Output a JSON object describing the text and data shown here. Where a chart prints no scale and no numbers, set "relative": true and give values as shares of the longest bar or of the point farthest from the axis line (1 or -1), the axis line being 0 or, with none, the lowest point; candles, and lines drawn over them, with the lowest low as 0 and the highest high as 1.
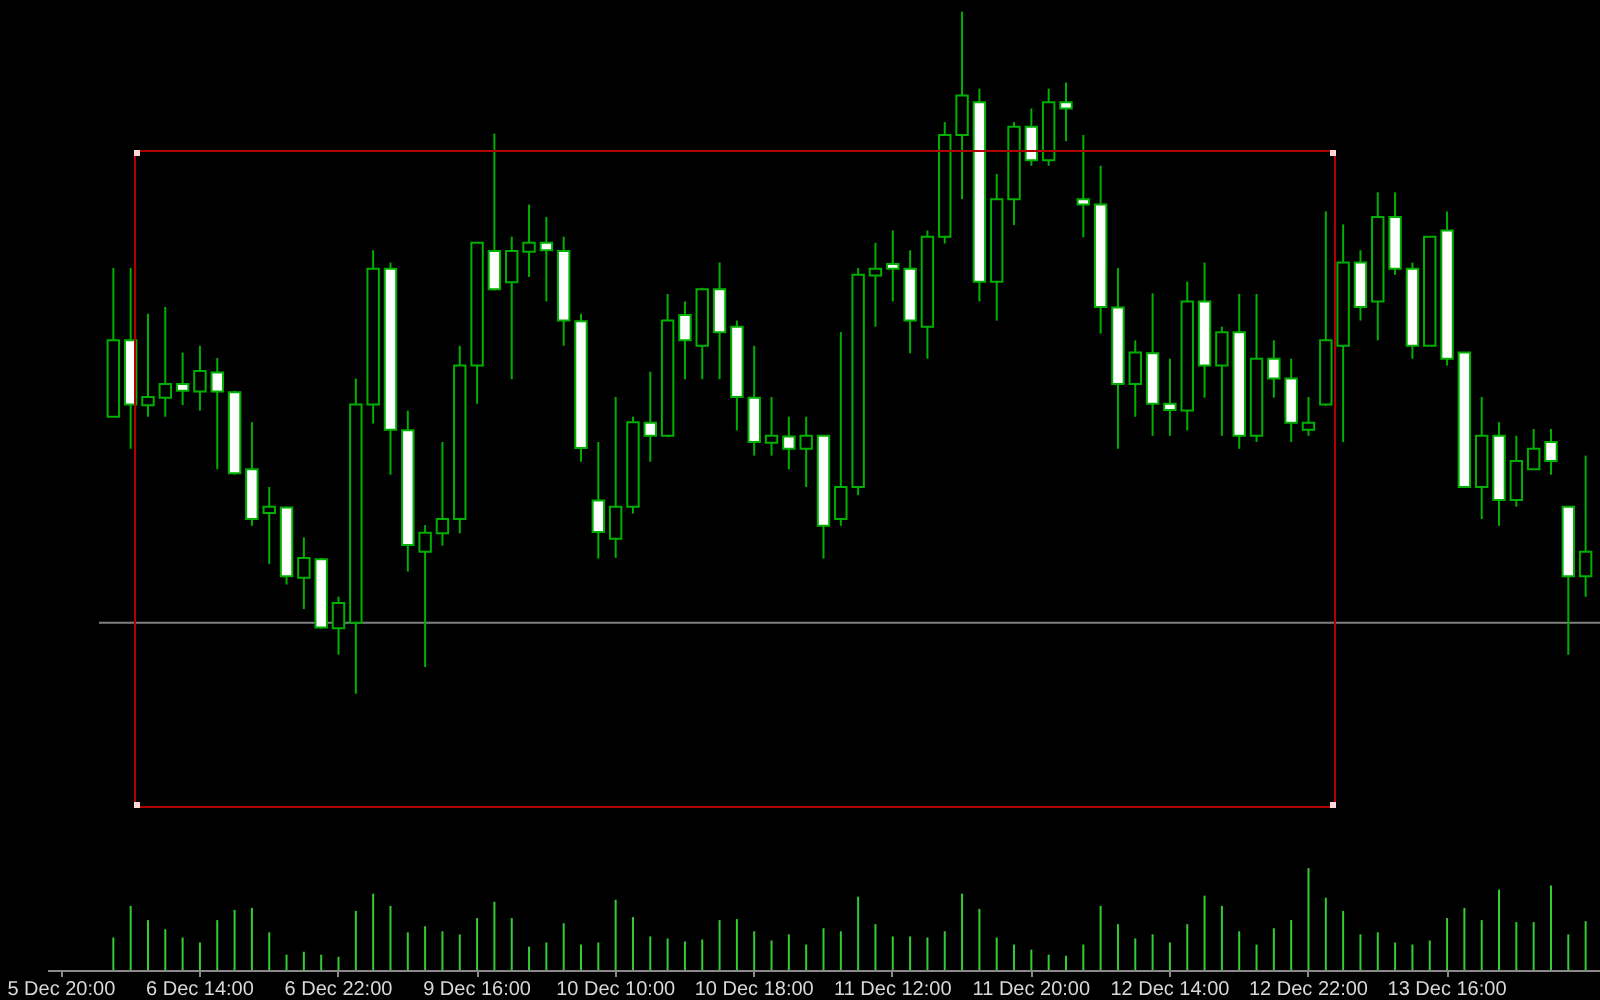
{
  "chart_data": [
    {
      "type": "candlestick",
      "relative": true,
      "color": "#00b000",
      "categories": [
        null,
        null,
        null,
        null,
        null,
        null,
        null,
        null,
        null,
        null,
        null,
        null,
        null,
        null,
        null,
        null,
        null,
        null,
        null,
        null,
        null,
        null,
        null,
        null,
        null,
        null,
        null,
        null,
        null,
        null,
        null,
        null,
        null,
        null,
        null,
        null,
        null,
        null,
        null,
        null,
        null,
        null,
        null,
        null,
        null,
        null,
        null,
        null,
        null,
        null,
        null,
        null,
        null,
        null,
        null,
        null,
        null,
        null,
        null,
        null,
        null,
        null,
        null,
        null,
        null,
        null,
        null,
        null,
        null,
        null,
        null,
        null,
        null,
        null,
        null,
        null,
        null,
        null,
        null,
        null,
        null,
        null,
        null,
        null,
        null,
        null
      ],
      "ohlc": [
        [
          0.406,
          0.624,
          0.406,
          0.518
        ],
        [
          0.518,
          0.624,
          0.359,
          0.424
        ],
        [
          0.423,
          0.557,
          0.406,
          0.435
        ],
        [
          0.434,
          0.567,
          0.406,
          0.454
        ],
        [
          0.454,
          0.5,
          0.423,
          0.444
        ],
        [
          0.443,
          0.51,
          0.415,
          0.473
        ],
        [
          0.471,
          0.492,
          0.329,
          0.443
        ],
        [
          0.442,
          0.444,
          0.321,
          0.323
        ],
        [
          0.329,
          0.398,
          0.246,
          0.256
        ],
        [
          0.265,
          0.303,
          0.19,
          0.274
        ],
        [
          0.273,
          0.274,
          0.16,
          0.172
        ],
        [
          0.17,
          0.229,
          0.124,
          0.199
        ],
        [
          0.197,
          0.199,
          0.095,
          0.097
        ],
        [
          0.096,
          0.142,
          0.057,
          0.133
        ],
        [
          0.104,
          0.462,
          0,
          0.424
        ],
        [
          0.424,
          0.65,
          0.396,
          0.623
        ],
        [
          0.623,
          0.632,
          0.321,
          0.387
        ],
        [
          0.386,
          0.415,
          0.179,
          0.218
        ],
        [
          0.208,
          0.247,
          0.039,
          0.236
        ],
        [
          0.235,
          0.369,
          0.217,
          0.256
        ],
        [
          0.256,
          0.51,
          0.235,
          0.481
        ],
        [
          0.481,
          0.661,
          0.425,
          0.661
        ],
        [
          0.649,
          0.821,
          0.591,
          0.593
        ],
        [
          0.603,
          0.67,
          0.461,
          0.649
        ],
        [
          0.648,
          0.717,
          0.611,
          0.661
        ],
        [
          0.661,
          0.699,
          0.575,
          0.65
        ],
        [
          0.649,
          0.67,
          0.51,
          0.547
        ],
        [
          0.546,
          0.557,
          0.34,
          0.36
        ],
        [
          0.283,
          0.369,
          0.198,
          0.237
        ],
        [
          0.227,
          0.435,
          0.199,
          0.274
        ],
        [
          0.274,
          0.406,
          0.264,
          0.398
        ],
        [
          0.397,
          0.472,
          0.34,
          0.378
        ],
        [
          0.378,
          0.586,
          0.376,
          0.547
        ],
        [
          0.555,
          0.575,
          0.461,
          0.518
        ],
        [
          0.51,
          0.595,
          0.461,
          0.593
        ],
        [
          0.593,
          0.632,
          0.461,
          0.53
        ],
        [
          0.538,
          0.547,
          0.386,
          0.435
        ],
        [
          0.434,
          0.51,
          0.349,
          0.369
        ],
        [
          0.368,
          0.435,
          0.349,
          0.378
        ],
        [
          0.377,
          0.406,
          0.329,
          0.359
        ],
        [
          0.359,
          0.406,
          0.303,
          0.378
        ],
        [
          0.378,
          0.378,
          0.198,
          0.246
        ],
        [
          0.256,
          0.53,
          0.246,
          0.303
        ],
        [
          0.303,
          0.624,
          0.291,
          0.614
        ],
        [
          0.613,
          0.661,
          0.538,
          0.623
        ],
        [
          0.63,
          0.679,
          0.575,
          0.623
        ],
        [
          0.623,
          0.65,
          0.499,
          0.547
        ],
        [
          0.538,
          0.679,
          0.491,
          0.67
        ],
        [
          0.67,
          0.838,
          0.66,
          0.819
        ],
        [
          0.819,
          1,
          0.725,
          0.877
        ],
        [
          0.867,
          0.887,
          0.575,
          0.604
        ],
        [
          0.604,
          0.762,
          0.547,
          0.725
        ],
        [
          0.725,
          0.838,
          0.687,
          0.831
        ],
        [
          0.831,
          0.858,
          0.774,
          0.782
        ],
        [
          0.782,
          0.887,
          0.774,
          0.867
        ],
        [
          0.867,
          0.896,
          0.81,
          0.858
        ],
        [
          0.725,
          0.819,
          0.669,
          0.717
        ],
        [
          0.717,
          0.774,
          0.528,
          0.567
        ],
        [
          0.566,
          0.624,
          0.359,
          0.454
        ],
        [
          0.454,
          0.518,
          0.406,
          0.5
        ],
        [
          0.499,
          0.587,
          0.378,
          0.425
        ],
        [
          0.425,
          0.491,
          0.378,
          0.416
        ],
        [
          0.415,
          0.604,
          0.386,
          0.575
        ],
        [
          0.575,
          0.632,
          0.434,
          0.481
        ],
        [
          0.481,
          0.538,
          0.378,
          0.53
        ],
        [
          0.53,
          0.586,
          0.359,
          0.378
        ],
        [
          0.378,
          0.586,
          0.369,
          0.491
        ],
        [
          0.491,
          0.518,
          0.434,
          0.462
        ],
        [
          0.462,
          0.491,
          0.369,
          0.397
        ],
        [
          0.387,
          0.435,
          0.378,
          0.397
        ],
        [
          0.424,
          0.707,
          0.422,
          0.518
        ],
        [
          0.51,
          0.688,
          0.369,
          0.632
        ],
        [
          0.632,
          0.65,
          0.547,
          0.567
        ],
        [
          0.575,
          0.735,
          0.518,
          0.699
        ],
        [
          0.699,
          0.735,
          0.614,
          0.623
        ],
        [
          0.623,
          0.632,
          0.491,
          0.51
        ],
        [
          0.51,
          0.67,
          0.51,
          0.67
        ],
        [
          0.679,
          0.707,
          0.481,
          0.491
        ],
        [
          0.5,
          0.5,
          0.303,
          0.303
        ],
        [
          0.303,
          0.435,
          0.256,
          0.378
        ],
        [
          0.378,
          0.398,
          0.246,
          0.284
        ],
        [
          0.284,
          0.378,
          0.274,
          0.341
        ],
        [
          0.329,
          0.388,
          0.329,
          0.359
        ],
        [
          0.369,
          0.388,
          0.321,
          0.341
        ],
        [
          0.274,
          0.274,
          0.057,
          0.172
        ],
        [
          0.172,
          0.349,
          0.142,
          0.208
        ]
      ],
      "colors": [
        "#000000",
        "#ffffff",
        "#000000",
        "#000000",
        "#ffffff",
        "#000000",
        "#ffffff",
        "#ffffff",
        "#ffffff",
        "#000000",
        "#ffffff",
        "#000000",
        "#ffffff",
        "#000000",
        "#000000",
        "#000000",
        "#ffffff",
        "#ffffff",
        "#000000",
        "#000000",
        "#000000",
        "#000000",
        "#ffffff",
        "#000000",
        "#000000",
        "#ffffff",
        "#ffffff",
        "#ffffff",
        "#ffffff",
        "#000000",
        "#000000",
        "#ffffff",
        "#000000",
        "#ffffff",
        "#000000",
        "#ffffff",
        "#ffffff",
        "#ffffff",
        "#000000",
        "#ffffff",
        "#000000",
        "#ffffff",
        "#000000",
        "#000000",
        "#000000",
        "#ffffff",
        "#ffffff",
        "#000000",
        "#000000",
        "#000000",
        "#ffffff",
        "#000000",
        "#000000",
        "#ffffff",
        "#000000",
        "#ffffff",
        "#ffffff",
        "#ffffff",
        "#ffffff",
        "#000000",
        "#ffffff",
        "#ffffff",
        "#000000",
        "#ffffff",
        "#000000",
        "#ffffff",
        "#000000",
        "#ffffff",
        "#ffffff",
        "#000000",
        "#000000",
        "#000000",
        "#ffffff",
        "#000000",
        "#ffffff",
        "#ffffff",
        "#000000",
        "#ffffff",
        "#ffffff",
        "#000000",
        "#ffffff",
        "#000000",
        "#000000",
        "#ffffff",
        "#ffffff",
        "#000000"
      ],
      "ref_lines": [
        {
          "axis": "y",
          "value": 0.104,
          "color": "#808080"
        }
      ]
    },
    {
      "type": "bar",
      "relative": true,
      "color": "#32cd32",
      "categories": [
        "5 Dec 20:00",
        null,
        null,
        null,
        null,
        null,
        null,
        null,
        "6 Dec 14:00",
        null,
        null,
        null,
        null,
        null,
        null,
        null,
        "6 Dec 22:00",
        null,
        null,
        null,
        null,
        null,
        null,
        null,
        "9 Dec 16:00",
        null,
        null,
        null,
        null,
        null,
        null,
        null,
        "10 Dec 10:00",
        null,
        null,
        null,
        null,
        null,
        null,
        null,
        "10 Dec 18:00",
        null,
        null,
        null,
        null,
        null,
        null,
        null,
        "11 Dec 12:00",
        null,
        null,
        null,
        null,
        null,
        null,
        null,
        "11 Dec 20:00",
        null,
        null,
        null,
        null,
        null,
        null,
        null,
        "12 Dec 14:00",
        null,
        null,
        null,
        null,
        null,
        null,
        null,
        "12 Dec 22:00",
        null,
        null,
        null,
        null,
        null,
        null,
        null,
        "13 Dec 16:00",
        null,
        null,
        null,
        null,
        null,
        null,
        null,
        null
      ],
      "values": [
        null,
        null,
        null,
        0.32,
        0.63,
        0.49,
        0.4,
        0.32,
        0.27,
        0.49,
        0.59,
        0.61,
        0.37,
        0.15,
        0.18,
        0.15,
        0.13,
        0.58,
        0.75,
        0.63,
        0.37,
        0.43,
        0.38,
        0.35,
        0.51,
        0.67,
        0.51,
        0.23,
        0.27,
        0.46,
        0.25,
        0.27,
        0.69,
        0.52,
        0.33,
        0.31,
        0.28,
        0.3,
        0.49,
        0.5,
        0.38,
        0.29,
        0.35,
        0.25,
        0.41,
        0.38,
        0.72,
        0.45,
        0.33,
        0.33,
        0.32,
        0.38,
        0.75,
        0.6,
        0.32,
        0.25,
        0.2,
        0.15,
        0.14,
        0.25,
        0.63,
        0.45,
        0.31,
        0.35,
        0.27,
        0.45,
        0.73,
        0.63,
        0.38,
        0.25,
        0.41,
        0.49,
        1,
        0.71,
        0.58,
        0.35,
        0.37,
        0.27,
        0.25,
        0.29,
        0.51,
        0.61,
        0.49,
        0.79,
        0.47,
        0.47,
        0.83,
        0.35,
        0.48
      ]
    }
  ]
}
